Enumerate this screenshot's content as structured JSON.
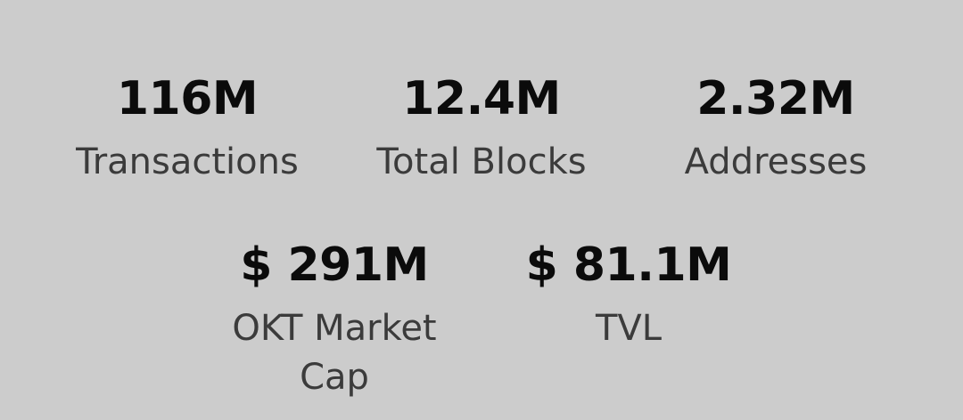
{
  "stats": [
    {
      "value": "116M",
      "label": "Transactions"
    },
    {
      "value": "12.4M",
      "label": "Total Blocks"
    },
    {
      "value": "2.32M",
      "label": "Addresses"
    },
    {
      "value": "$ 291M",
      "label": "OKT Market Cap"
    },
    {
      "value": "$ 81.1M",
      "label": "TVL"
    }
  ],
  "colors": {
    "background": "#cccccc",
    "value_text": "#0b0b0b",
    "label_text": "#3b3b3b"
  }
}
